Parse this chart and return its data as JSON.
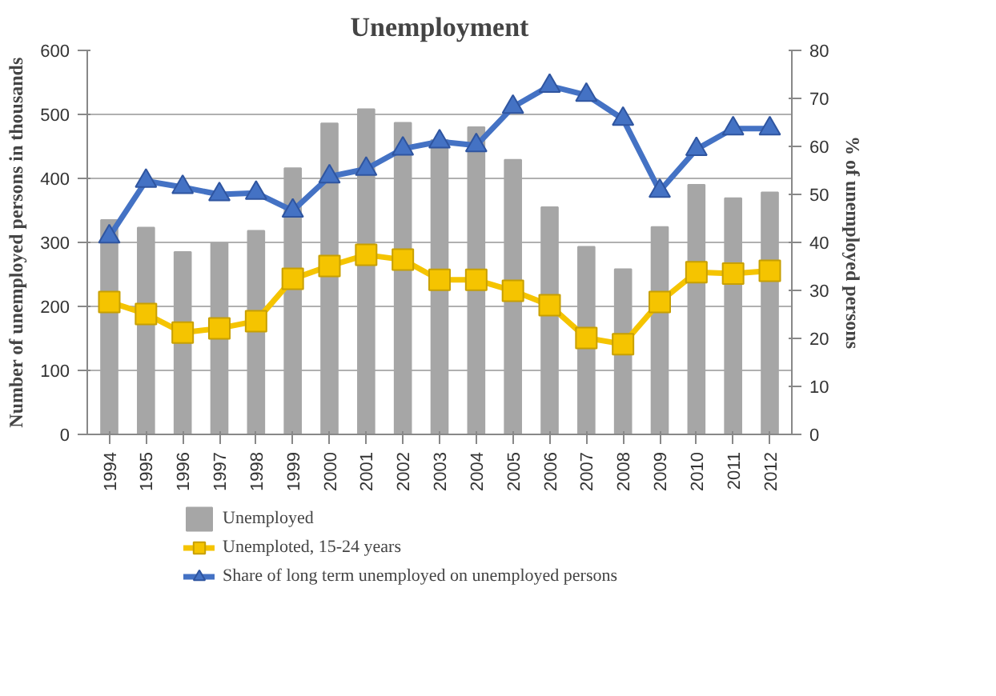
{
  "chart_data": {
    "type": "bar",
    "title": "Unemployment",
    "ylabel": "Number of unemployed persons in thousands",
    "y2label": "% of unemployed persons",
    "categories": [
      "1994",
      "1995",
      "1996",
      "1997",
      "1998",
      "1999",
      "2000",
      "2001",
      "2002",
      "2003",
      "2004",
      "2005",
      "2006",
      "2007",
      "2008",
      "2009",
      "2010",
      "2011",
      "2012"
    ],
    "series": [
      {
        "name": "Unemployed",
        "color": "#a6a6a6",
        "values": [
          335,
          323,
          285,
          299,
          318,
          416,
          486,
          508,
          487,
          460,
          480,
          429,
          355,
          293,
          258,
          324,
          390,
          369,
          378
        ]
      },
      {
        "name": "Unemploted, 15-24 years",
        "type": "line",
        "axis": "y2",
        "marker": "square",
        "color": "#f5c400",
        "values": [
          27.6,
          25.1,
          21.2,
          22.1,
          23.6,
          32.4,
          35.1,
          37.4,
          36.4,
          32.2,
          32.2,
          29.9,
          26.9,
          20.1,
          18.8,
          27.6,
          33.8,
          33.5,
          34.1
        ]
      },
      {
        "name": "Share of long term unemployed on unemployed persons",
        "type": "line",
        "axis": "y2",
        "marker": "triangle",
        "color": "#4472c4",
        "values": [
          41.2,
          52.8,
          51.5,
          50,
          50.3,
          46.6,
          53.7,
          55.3,
          59.5,
          61,
          60.2,
          68.2,
          72.6,
          70.7,
          65.7,
          50.7,
          59.4,
          63.7,
          63.7
        ]
      }
    ],
    "ylim": [
      0,
      600
    ],
    "yticks": [
      0,
      100,
      200,
      300,
      400,
      500,
      600
    ],
    "y2lim": [
      0,
      80
    ],
    "y2ticks": [
      0,
      10,
      20,
      30,
      40,
      50,
      60,
      70,
      80
    ],
    "grid": "y",
    "legend": "bottom"
  }
}
